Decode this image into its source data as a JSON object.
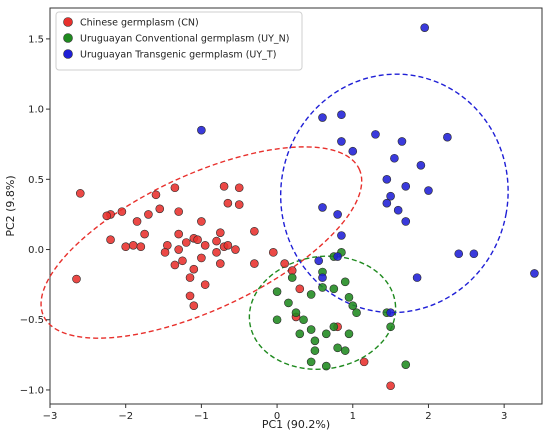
{
  "chart_data": {
    "type": "scatter",
    "xlabel": "PC1 (90.2%)",
    "ylabel": "PC2 (9.8%)",
    "xlim": [
      -3,
      3.5
    ],
    "ylim": [
      -1.1,
      1.72
    ],
    "x_ticks": [
      -3,
      -2,
      -1,
      0,
      1,
      2,
      3
    ],
    "y_ticks": [
      -1.0,
      -0.5,
      0.0,
      0.5,
      1.0,
      1.5
    ],
    "grid": false,
    "legend_position": "top-left",
    "series": [
      {
        "name": "Chinese germplasm (CN)",
        "color": "#e8302c",
        "ellipse": {
          "cx": -1.0,
          "cy": 0.05,
          "rx": 2.3,
          "ry": 0.48,
          "angle_deg": 25
        },
        "points": [
          [
            -2.65,
            -0.21
          ],
          [
            -2.6,
            0.4
          ],
          [
            -2.2,
            0.25
          ],
          [
            -2.25,
            0.24
          ],
          [
            -2.05,
            0.27
          ],
          [
            -2.2,
            0.07
          ],
          [
            -2.0,
            0.02
          ],
          [
            -1.9,
            0.03
          ],
          [
            -1.8,
            0.02
          ],
          [
            -1.75,
            0.11
          ],
          [
            -1.85,
            0.2
          ],
          [
            -1.7,
            0.25
          ],
          [
            -1.55,
            0.29
          ],
          [
            -1.6,
            0.39
          ],
          [
            -1.35,
            0.44
          ],
          [
            -1.3,
            0.27
          ],
          [
            -1.3,
            0.11
          ],
          [
            -1.45,
            0.03
          ],
          [
            -1.48,
            -0.02
          ],
          [
            -1.3,
            0.0
          ],
          [
            -1.2,
            0.05
          ],
          [
            -1.25,
            -0.08
          ],
          [
            -1.35,
            -0.11
          ],
          [
            -1.1,
            0.08
          ],
          [
            -1.0,
            0.2
          ],
          [
            -1.05,
            0.07
          ],
          [
            -0.95,
            0.03
          ],
          [
            -1.0,
            -0.06
          ],
          [
            -1.1,
            -0.14
          ],
          [
            -0.95,
            -0.25
          ],
          [
            -1.15,
            -0.2
          ],
          [
            -1.15,
            -0.33
          ],
          [
            -1.1,
            -0.4
          ],
          [
            -0.7,
            0.45
          ],
          [
            -0.5,
            0.44
          ],
          [
            -0.65,
            0.33
          ],
          [
            -0.5,
            0.32
          ],
          [
            -0.75,
            0.12
          ],
          [
            -0.8,
            0.06
          ],
          [
            -0.7,
            0.02
          ],
          [
            -0.8,
            -0.02
          ],
          [
            -0.75,
            -0.1
          ],
          [
            -0.65,
            0.03
          ],
          [
            -0.55,
            0.0
          ],
          [
            -0.3,
            -0.1
          ],
          [
            -0.3,
            0.13
          ],
          [
            -0.05,
            -0.02
          ],
          [
            0.1,
            -0.1
          ],
          [
            0.2,
            -0.15
          ],
          [
            0.3,
            -0.28
          ],
          [
            0.25,
            -0.48
          ],
          [
            0.8,
            -0.55
          ],
          [
            1.15,
            -0.8
          ],
          [
            1.5,
            -0.97
          ]
        ]
      },
      {
        "name": "Uruguayan Conventional germplasm (UY_N)",
        "color": "#1f8a1f",
        "ellipse": {
          "cx": 0.6,
          "cy": -0.45,
          "rx": 0.97,
          "ry": 0.4,
          "angle_deg": 8
        },
        "points": [
          [
            0.2,
            -0.2
          ],
          [
            0.0,
            -0.3
          ],
          [
            0.6,
            -0.16
          ],
          [
            0.75,
            -0.05
          ],
          [
            0.85,
            -0.02
          ],
          [
            0.45,
            -0.32
          ],
          [
            0.6,
            -0.27
          ],
          [
            0.75,
            -0.28
          ],
          [
            0.9,
            -0.23
          ],
          [
            0.95,
            -0.34
          ],
          [
            1.0,
            -0.4
          ],
          [
            0.15,
            -0.38
          ],
          [
            0.25,
            -0.45
          ],
          [
            0.35,
            -0.5
          ],
          [
            0.3,
            -0.6
          ],
          [
            0.45,
            -0.57
          ],
          [
            0.5,
            -0.65
          ],
          [
            0.65,
            -0.6
          ],
          [
            0.75,
            -0.55
          ],
          [
            0.8,
            -0.7
          ],
          [
            0.95,
            -0.6
          ],
          [
            0.9,
            -0.72
          ],
          [
            0.5,
            -0.72
          ],
          [
            0.45,
            -0.8
          ],
          [
            0.65,
            -0.83
          ],
          [
            1.45,
            -0.45
          ],
          [
            1.5,
            -0.55
          ],
          [
            1.7,
            -0.82
          ],
          [
            1.05,
            -0.45
          ],
          [
            0.0,
            -0.5
          ]
        ]
      },
      {
        "name": "Uruguayan Transgenic germplasm (UY_T)",
        "color": "#1f1fd6",
        "ellipse": {
          "cx": 1.55,
          "cy": 0.4,
          "rx": 1.5,
          "ry": 0.85,
          "angle_deg": -10
        },
        "points": [
          [
            1.95,
            1.58
          ],
          [
            -1.0,
            0.85
          ],
          [
            0.6,
            0.94
          ],
          [
            0.85,
            0.96
          ],
          [
            0.85,
            0.77
          ],
          [
            1.3,
            0.82
          ],
          [
            1.0,
            0.7
          ],
          [
            1.65,
            0.77
          ],
          [
            2.25,
            0.8
          ],
          [
            1.55,
            0.65
          ],
          [
            1.9,
            0.6
          ],
          [
            1.45,
            0.5
          ],
          [
            1.5,
            0.38
          ],
          [
            1.7,
            0.45
          ],
          [
            2.0,
            0.42
          ],
          [
            1.45,
            0.33
          ],
          [
            1.6,
            0.28
          ],
          [
            1.7,
            0.2
          ],
          [
            0.6,
            0.3
          ],
          [
            0.8,
            0.25
          ],
          [
            0.85,
            0.1
          ],
          [
            0.8,
            -0.05
          ],
          [
            0.55,
            -0.08
          ],
          [
            0.6,
            -0.2
          ],
          [
            2.4,
            -0.03
          ],
          [
            2.6,
            -0.03
          ],
          [
            1.85,
            -0.2
          ],
          [
            3.4,
            -0.17
          ],
          [
            1.5,
            -0.45
          ]
        ]
      }
    ]
  }
}
